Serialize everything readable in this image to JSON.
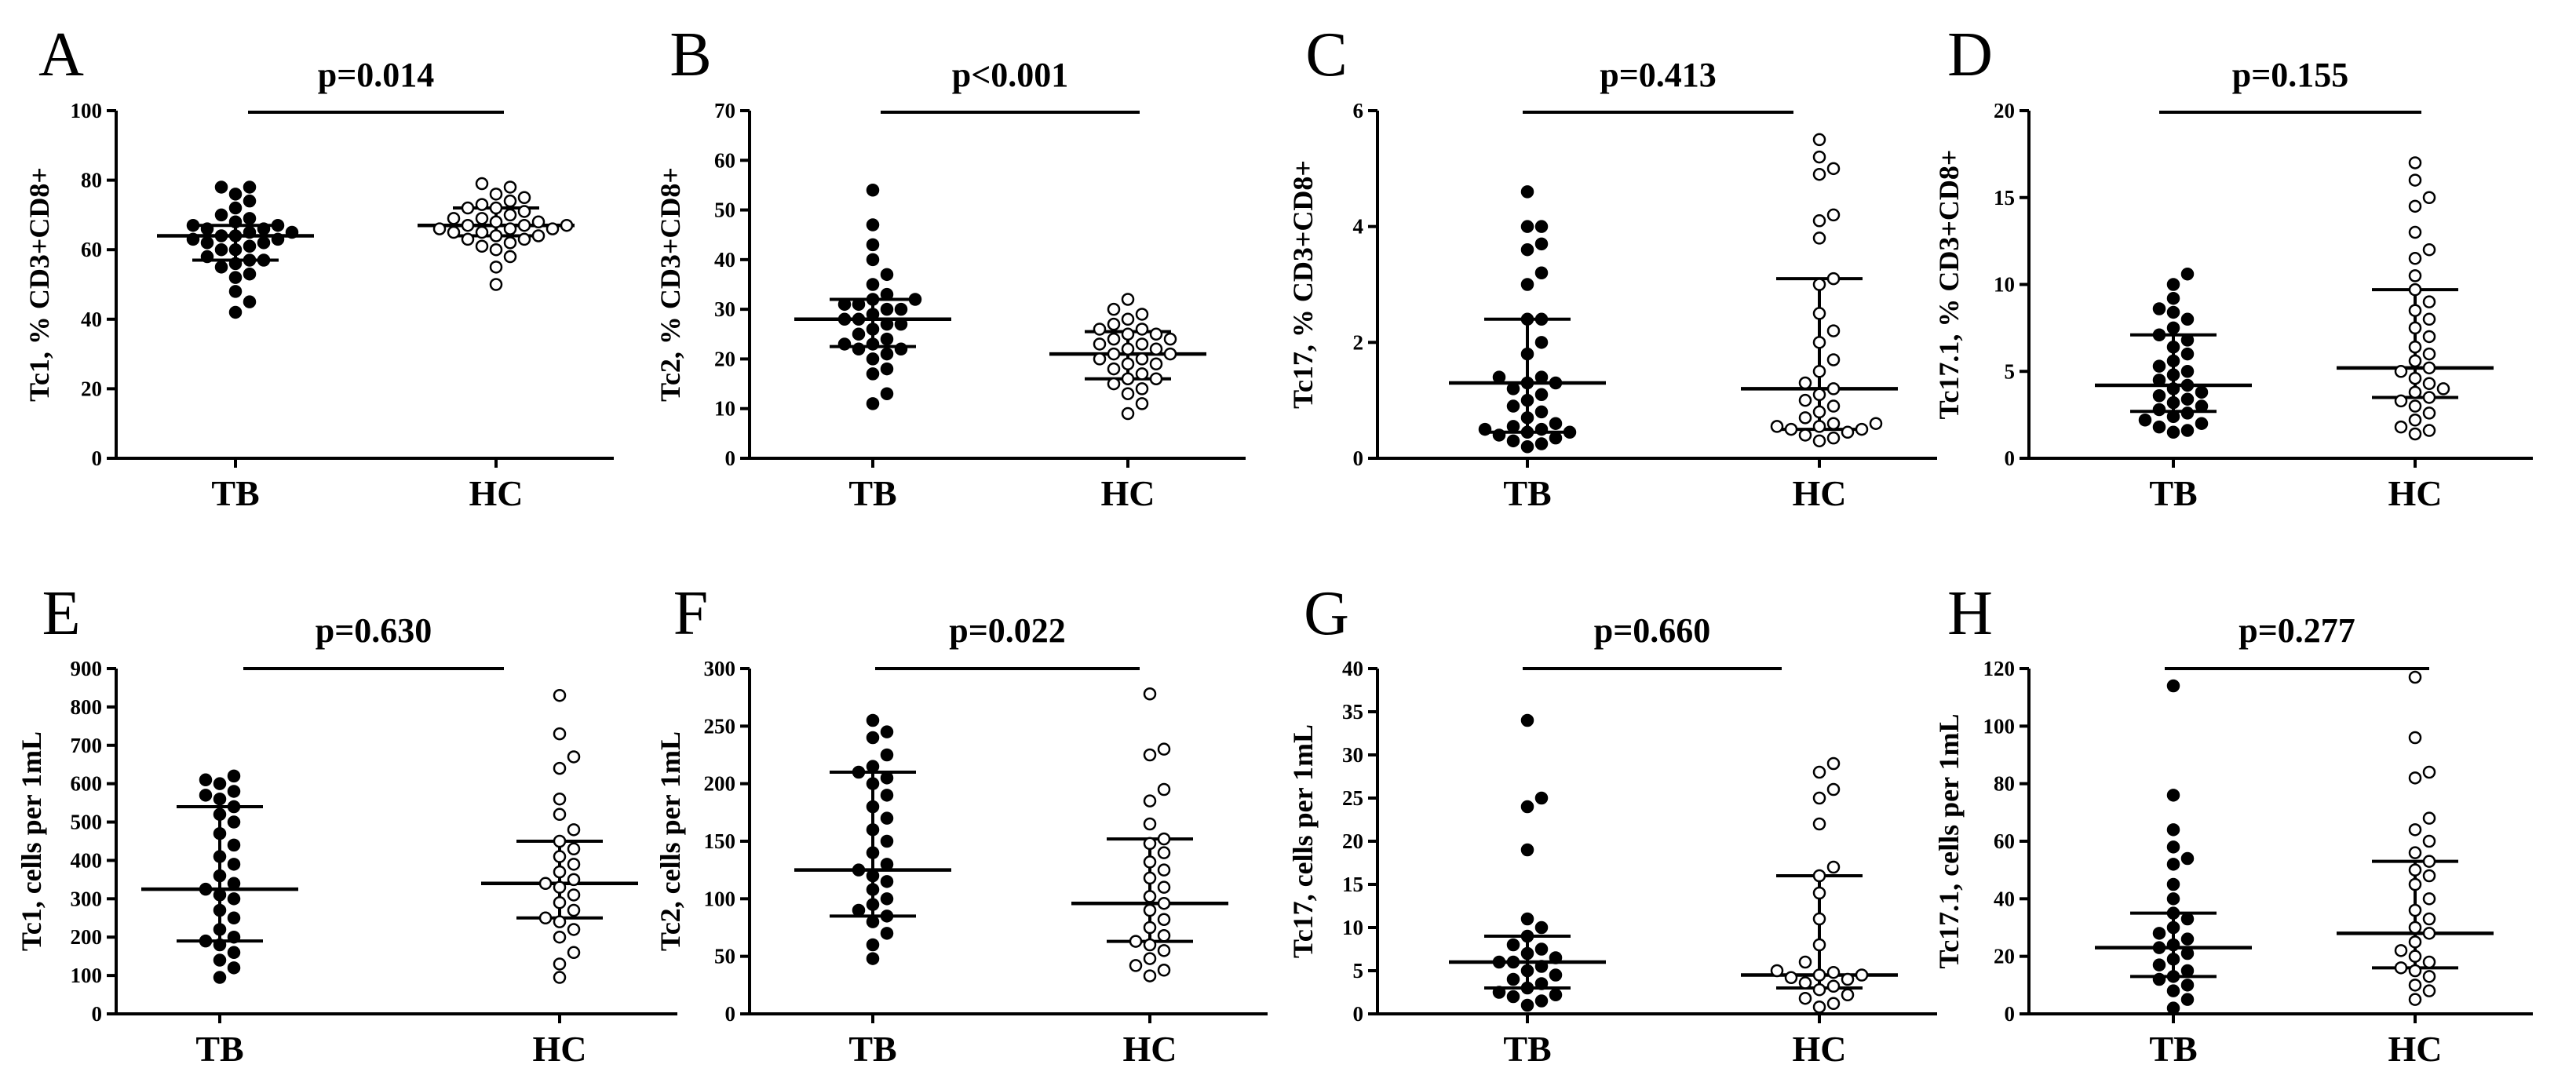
{
  "figure": {
    "description_free": true
  },
  "chart_data": [
    {
      "type": "scatter",
      "panel": "A",
      "pvalue": "p=0.014",
      "ylabel": "Tc1, % CD3+CD8+",
      "ylim": [
        0,
        100
      ],
      "yticks": [
        0,
        20,
        40,
        60,
        80,
        100
      ],
      "categories": [
        "TB",
        "HC"
      ],
      "groups": [
        {
          "name": "TB",
          "filled": true,
          "median": 64,
          "q1": 57,
          "q3": 67,
          "values": [
            42,
            45,
            48,
            52,
            53,
            55,
            56,
            57,
            57,
            58,
            60,
            60,
            61,
            62,
            62,
            63,
            63,
            64,
            64,
            65,
            65,
            66,
            66,
            67,
            67,
            68,
            69,
            70,
            72,
            74,
            76,
            78,
            78
          ]
        },
        {
          "name": "HC",
          "filled": false,
          "median": 67,
          "q1": 64,
          "q3": 72,
          "values": [
            50,
            55,
            58,
            60,
            61,
            62,
            63,
            63,
            64,
            64,
            65,
            65,
            66,
            66,
            66,
            67,
            67,
            67,
            68,
            68,
            69,
            69,
            70,
            71,
            72,
            72,
            73,
            74,
            75,
            76,
            78,
            79
          ]
        }
      ]
    },
    {
      "type": "scatter",
      "panel": "B",
      "pvalue": "p<0.001",
      "ylabel": "Tc2, % CD3+CD8+",
      "ylim": [
        0,
        70
      ],
      "yticks": [
        0,
        10,
        20,
        30,
        40,
        50,
        60,
        70
      ],
      "categories": [
        "TB",
        "HC"
      ],
      "groups": [
        {
          "name": "TB",
          "filled": true,
          "median": 28,
          "q1": 22.5,
          "q3": 32,
          "values": [
            11,
            13,
            17,
            18,
            20,
            21,
            22,
            22,
            23,
            23,
            24,
            25,
            26,
            27,
            27,
            28,
            28,
            29,
            30,
            30,
            31,
            31,
            32,
            32,
            33,
            35,
            37,
            40,
            43,
            47,
            54
          ]
        },
        {
          "name": "HC",
          "filled": false,
          "median": 21,
          "q1": 16,
          "q3": 25.5,
          "values": [
            9,
            11,
            13,
            14,
            15,
            16,
            16,
            17,
            18,
            19,
            19,
            20,
            20,
            21,
            21,
            22,
            22,
            23,
            23,
            24,
            24,
            25,
            25,
            26,
            26,
            27,
            28,
            29,
            30,
            32
          ]
        }
      ]
    },
    {
      "type": "scatter",
      "panel": "C",
      "pvalue": "p=0.413",
      "ylabel": "Tc17, % CD3+CD8+",
      "ylim": [
        0,
        6
      ],
      "yticks": [
        0,
        2,
        4,
        6
      ],
      "categories": [
        "TB",
        "HC"
      ],
      "groups": [
        {
          "name": "TB",
          "filled": true,
          "median": 1.3,
          "q1": 0.45,
          "q3": 2.4,
          "values": [
            0.2,
            0.25,
            0.3,
            0.35,
            0.4,
            0.45,
            0.45,
            0.5,
            0.5,
            0.55,
            0.6,
            0.7,
            0.8,
            0.9,
            1.0,
            1.1,
            1.2,
            1.3,
            1.3,
            1.4,
            1.4,
            1.8,
            2.0,
            2.4,
            2.4,
            3.0,
            3.2,
            3.6,
            3.7,
            4.0,
            4.0,
            4.6
          ]
        },
        {
          "name": "HC",
          "filled": false,
          "median": 1.2,
          "q1": 0.5,
          "q3": 3.1,
          "values": [
            0.3,
            0.35,
            0.4,
            0.45,
            0.5,
            0.5,
            0.55,
            0.55,
            0.6,
            0.6,
            0.7,
            0.8,
            0.9,
            1.0,
            1.1,
            1.2,
            1.3,
            1.5,
            1.7,
            2.0,
            2.2,
            2.5,
            3.0,
            3.1,
            3.8,
            4.1,
            4.2,
            4.9,
            5.0,
            5.2,
            5.5
          ]
        }
      ]
    },
    {
      "type": "scatter",
      "panel": "D",
      "pvalue": "p=0.155",
      "ylabel": "Tc17.1, % CD3+CD8+",
      "ylim": [
        0,
        20
      ],
      "yticks": [
        0,
        5,
        10,
        15,
        20
      ],
      "categories": [
        "TB",
        "HC"
      ],
      "groups": [
        {
          "name": "TB",
          "filled": true,
          "median": 4.2,
          "q1": 2.7,
          "q3": 7.1,
          "values": [
            1.5,
            1.6,
            1.8,
            2.0,
            2.2,
            2.4,
            2.6,
            2.8,
            3.0,
            3.2,
            3.4,
            3.6,
            3.8,
            4.0,
            4.2,
            4.5,
            4.8,
            5.0,
            5.3,
            5.6,
            6.0,
            6.4,
            6.8,
            7.1,
            7.5,
            8.0,
            8.4,
            8.6,
            9.2,
            10.0,
            10.6
          ]
        },
        {
          "name": "HC",
          "filled": false,
          "median": 5.2,
          "q1": 3.5,
          "q3": 9.7,
          "values": [
            1.4,
            1.6,
            1.8,
            2.2,
            2.6,
            3.0,
            3.3,
            3.5,
            3.8,
            4.0,
            4.3,
            4.6,
            5.0,
            5.2,
            5.6,
            6.0,
            6.4,
            7.0,
            7.5,
            8.0,
            8.5,
            9.0,
            9.7,
            10.5,
            11.5,
            12.0,
            13.0,
            14.5,
            15.0,
            16.0,
            17.0
          ]
        }
      ]
    },
    {
      "type": "scatter",
      "panel": "E",
      "pvalue": "p=0.630",
      "ylabel": "Tc1, cells per 1mL",
      "ylim": [
        0,
        900
      ],
      "yticks": [
        0,
        100,
        200,
        300,
        400,
        500,
        600,
        700,
        800,
        900
      ],
      "categories": [
        "TB",
        "HC"
      ],
      "groups": [
        {
          "name": "TB",
          "filled": true,
          "median": 325,
          "q1": 190,
          "q3": 540,
          "values": [
            95,
            120,
            140,
            160,
            180,
            190,
            200,
            220,
            250,
            270,
            300,
            310,
            325,
            340,
            360,
            390,
            410,
            440,
            470,
            500,
            520,
            540,
            560,
            570,
            580,
            600,
            610,
            620
          ]
        },
        {
          "name": "HC",
          "filled": false,
          "median": 340,
          "q1": 250,
          "q3": 450,
          "values": [
            95,
            130,
            160,
            200,
            220,
            240,
            250,
            270,
            290,
            310,
            330,
            340,
            350,
            370,
            390,
            410,
            430,
            450,
            480,
            520,
            560,
            640,
            670,
            730,
            830
          ]
        }
      ]
    },
    {
      "type": "scatter",
      "panel": "F",
      "pvalue": "p=0.022",
      "ylabel": "Tc2, cells per 1mL",
      "ylim": [
        0,
        300
      ],
      "yticks": [
        0,
        50,
        100,
        150,
        200,
        250,
        300
      ],
      "categories": [
        "TB",
        "HC"
      ],
      "groups": [
        {
          "name": "TB",
          "filled": true,
          "median": 125,
          "q1": 85,
          "q3": 210,
          "values": [
            48,
            60,
            70,
            80,
            85,
            90,
            95,
            100,
            108,
            115,
            120,
            125,
            130,
            140,
            150,
            160,
            170,
            180,
            190,
            200,
            205,
            210,
            215,
            225,
            240,
            245,
            255
          ]
        },
        {
          "name": "HC",
          "filled": false,
          "median": 96,
          "q1": 63,
          "q3": 152,
          "values": [
            33,
            38,
            42,
            48,
            55,
            60,
            63,
            68,
            75,
            82,
            90,
            96,
            102,
            110,
            118,
            125,
            132,
            140,
            148,
            152,
            165,
            185,
            195,
            225,
            230,
            278
          ]
        }
      ]
    },
    {
      "type": "scatter",
      "panel": "G",
      "pvalue": "p=0.660",
      "ylabel": "Tc17, cells per 1mL",
      "ylim": [
        0,
        40
      ],
      "yticks": [
        0,
        5,
        10,
        15,
        20,
        25,
        30,
        35,
        40
      ],
      "categories": [
        "TB",
        "HC"
      ],
      "groups": [
        {
          "name": "TB",
          "filled": true,
          "median": 6,
          "q1": 3,
          "q3": 9,
          "values": [
            1.0,
            1.5,
            2.0,
            2.2,
            2.5,
            3.0,
            3.5,
            4.0,
            4.5,
            5.0,
            5.5,
            6.0,
            6.0,
            6.5,
            7.0,
            7.5,
            8.0,
            9.0,
            10.0,
            11.0,
            19.0,
            24.0,
            25.0,
            34.0
          ]
        },
        {
          "name": "HC",
          "filled": false,
          "median": 4.5,
          "q1": 3,
          "q3": 16,
          "values": [
            0.8,
            1.2,
            1.8,
            2.2,
            2.8,
            3.2,
            3.6,
            4.0,
            4.2,
            4.5,
            4.5,
            4.8,
            5.0,
            6.0,
            8.0,
            11.0,
            14.0,
            16.0,
            17.0,
            22.0,
            25.0,
            26.0,
            28.0,
            29.0
          ]
        }
      ]
    },
    {
      "type": "scatter",
      "panel": "H",
      "pvalue": "p=0.277",
      "ylabel": "Tc17.1, cells per 1mL",
      "ylim": [
        0,
        120
      ],
      "yticks": [
        0,
        20,
        40,
        60,
        80,
        100,
        120
      ],
      "categories": [
        "TB",
        "HC"
      ],
      "groups": [
        {
          "name": "TB",
          "filled": true,
          "median": 23,
          "q1": 13,
          "q3": 35,
          "values": [
            2,
            5,
            8,
            10,
            12,
            13,
            15,
            17,
            19,
            21,
            23,
            24,
            26,
            28,
            30,
            33,
            35,
            40,
            45,
            52,
            54,
            58,
            64,
            76,
            114
          ]
        },
        {
          "name": "HC",
          "filled": false,
          "median": 28,
          "q1": 16,
          "q3": 53,
          "values": [
            5,
            8,
            10,
            13,
            15,
            16,
            18,
            20,
            22,
            25,
            28,
            30,
            33,
            36,
            40,
            45,
            48,
            50,
            53,
            56,
            60,
            64,
            68,
            82,
            84,
            96,
            117
          ]
        }
      ]
    }
  ]
}
